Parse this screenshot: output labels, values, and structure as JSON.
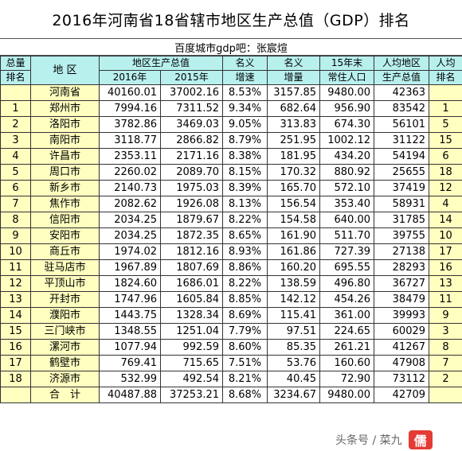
{
  "title": "2016年河南省18省辖市地区生产总值（GDP）排名",
  "subtitle": "百度城市gdp吧：张宸煊",
  "headers": {
    "rank_top": "总量",
    "rank_bottom": "排名",
    "region": "地 区",
    "gdp_group": "地区生产总值",
    "gdp2016": "2016年",
    "gdp2015": "2015年",
    "nominal_growth_top": "名义",
    "nominal_growth_bottom": "增速",
    "nominal_inc_top": "名义",
    "nominal_inc_bottom": "增量",
    "pop_top": "15年末",
    "pop_bottom": "常住人口",
    "percap_top": "人均地区",
    "percap_bottom": "生产总值",
    "percap_rank_top": "人均",
    "percap_rank_bottom": "排名"
  },
  "province_row": {
    "rank": "",
    "region": "河南省",
    "gdp2016": "40160.01",
    "gdp2015": "37002.16",
    "growth": "8.53%",
    "increase": "3157.85",
    "population": "9480.00",
    "per_capita": "42363",
    "pc_rank": ""
  },
  "rows": [
    {
      "rank": "1",
      "region": "郑州市",
      "gdp2016": "7994.16",
      "gdp2015": "7311.52",
      "growth": "9.34%",
      "increase": "682.64",
      "population": "956.90",
      "per_capita": "83542",
      "pc_rank": "1"
    },
    {
      "rank": "2",
      "region": "洛阳市",
      "gdp2016": "3782.86",
      "gdp2015": "3469.03",
      "growth": "9.05%",
      "increase": "313.83",
      "population": "674.30",
      "per_capita": "56101",
      "pc_rank": "5"
    },
    {
      "rank": "3",
      "region": "南阳市",
      "gdp2016": "3118.77",
      "gdp2015": "2866.82",
      "growth": "8.79%",
      "increase": "251.95",
      "population": "1002.12",
      "per_capita": "31122",
      "pc_rank": "15"
    },
    {
      "rank": "4",
      "region": "许昌市",
      "gdp2016": "2353.11",
      "gdp2015": "2171.16",
      "growth": "8.38%",
      "increase": "181.95",
      "population": "434.20",
      "per_capita": "54194",
      "pc_rank": "6"
    },
    {
      "rank": "5",
      "region": "周口市",
      "gdp2016": "2260.02",
      "gdp2015": "2089.70",
      "growth": "8.15%",
      "increase": "170.32",
      "population": "880.92",
      "per_capita": "25655",
      "pc_rank": "18"
    },
    {
      "rank": "6",
      "region": "新乡市",
      "gdp2016": "2140.73",
      "gdp2015": "1975.03",
      "growth": "8.39%",
      "increase": "165.70",
      "population": "572.10",
      "per_capita": "37419",
      "pc_rank": "12"
    },
    {
      "rank": "7",
      "region": "焦作市",
      "gdp2016": "2082.62",
      "gdp2015": "1926.08",
      "growth": "8.13%",
      "increase": "156.54",
      "population": "353.40",
      "per_capita": "58931",
      "pc_rank": "4"
    },
    {
      "rank": "8",
      "region": "信阳市",
      "gdp2016": "2034.25",
      "gdp2015": "1879.67",
      "growth": "8.22%",
      "increase": "154.58",
      "population": "640.00",
      "per_capita": "31785",
      "pc_rank": "14"
    },
    {
      "rank": "9",
      "region": "安阳市",
      "gdp2016": "2034.25",
      "gdp2015": "1872.35",
      "growth": "8.65%",
      "increase": "161.90",
      "population": "511.70",
      "per_capita": "39755",
      "pc_rank": "10"
    },
    {
      "rank": "10",
      "region": "商丘市",
      "gdp2016": "1974.02",
      "gdp2015": "1812.16",
      "growth": "8.93%",
      "increase": "161.86",
      "population": "727.39",
      "per_capita": "27138",
      "pc_rank": "17"
    },
    {
      "rank": "11",
      "region": "驻马店市",
      "gdp2016": "1967.89",
      "gdp2015": "1807.69",
      "growth": "8.86%",
      "increase": "160.20",
      "population": "695.55",
      "per_capita": "28293",
      "pc_rank": "16"
    },
    {
      "rank": "12",
      "region": "平顶山市",
      "gdp2016": "1824.60",
      "gdp2015": "1686.01",
      "growth": "8.22%",
      "increase": "138.59",
      "population": "496.80",
      "per_capita": "36727",
      "pc_rank": "13"
    },
    {
      "rank": "13",
      "region": "开封市",
      "gdp2016": "1747.96",
      "gdp2015": "1605.84",
      "growth": "8.85%",
      "increase": "142.12",
      "population": "454.26",
      "per_capita": "38479",
      "pc_rank": "11"
    },
    {
      "rank": "14",
      "region": "濮阳市",
      "gdp2016": "1443.75",
      "gdp2015": "1328.34",
      "growth": "8.69%",
      "increase": "115.41",
      "population": "361.00",
      "per_capita": "39993",
      "pc_rank": "9"
    },
    {
      "rank": "15",
      "region": "三门峡市",
      "gdp2016": "1348.55",
      "gdp2015": "1251.04",
      "growth": "7.79%",
      "increase": "97.51",
      "population": "224.65",
      "per_capita": "60029",
      "pc_rank": "3"
    },
    {
      "rank": "16",
      "region": "漯河市",
      "gdp2016": "1077.94",
      "gdp2015": "992.59",
      "growth": "8.60%",
      "increase": "85.35",
      "population": "261.21",
      "per_capita": "41267",
      "pc_rank": "8"
    },
    {
      "rank": "17",
      "region": "鹤壁市",
      "gdp2016": "769.41",
      "gdp2015": "715.65",
      "growth": "7.51%",
      "increase": "53.76",
      "population": "160.60",
      "per_capita": "47908",
      "pc_rank": "7"
    },
    {
      "rank": "18",
      "region": "济源市",
      "gdp2016": "532.99",
      "gdp2015": "492.54",
      "growth": "8.21%",
      "increase": "40.45",
      "population": "72.90",
      "per_capita": "73112",
      "pc_rank": "2"
    }
  ],
  "total_row": {
    "rank": "",
    "region": "合　计",
    "gdp2016": "40487.88",
    "gdp2015": "37253.21",
    "growth": "8.68%",
    "increase": "3234.67",
    "population": "9480.00",
    "per_capita": "42709",
    "pc_rank": ""
  },
  "watermark": {
    "text": "头条号 / 菜九",
    "icon": "红色方块标志"
  },
  "colors": {
    "header_bg": "#b8f0ee",
    "highlight_bg": "#ffffc0"
  }
}
